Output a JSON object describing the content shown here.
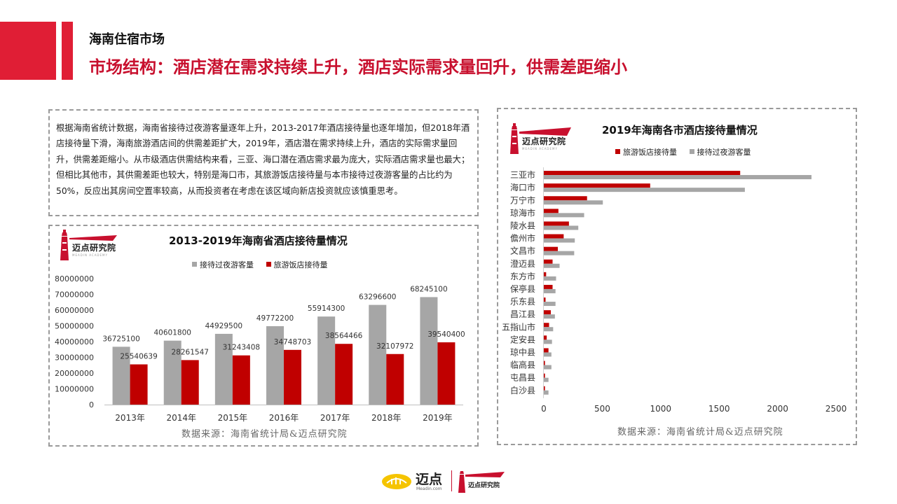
{
  "header": {
    "section": "海南住宿市场",
    "title": "市场结构：酒店潜在需求持续上升，酒店实际需求量回升，供需差距缩小"
  },
  "intro": {
    "text": "根据海南省统计数据，海南省接待过夜游客量逐年上升，2013-2017年酒店接待量也逐年增加，但2018年酒店接待量下滑，海南旅游酒店间的供需差距扩大，2019年，酒店潜在需求持续上升，酒店的实际需求量回升，供需差距缩小。从市级酒店供需结构来看，三亚、海口潜在酒店需求最为庞大，实际酒店需求量也最大；但相比其他市，其供需差距也较大，特别是海口市，其旅游饭店接待量与本市接待过夜游客量的占比约为50%，反应出其房间空置率较高，从而投资者在考虑在该区域向新店投资就应该慎重思考。"
  },
  "logos": {
    "academy_name": "迈点研究院",
    "academy_sub": "MEADIN ACADEMY",
    "footer_brand": "迈点",
    "footer_domain": "Meadin.com",
    "footer_academy": "迈点研究院"
  },
  "colors": {
    "red": "#c00000",
    "gray": "#a6a6a6",
    "accent": "#e01e35"
  },
  "left_chart": {
    "source": "数据来源：海南省统计局&迈点研究院"
  },
  "right_chart": {
    "source": "数据来源：海南省统计局&迈点研究院"
  },
  "chart_data": [
    {
      "type": "bar",
      "title": "2013-2019年海南省酒店接待量情况",
      "categories": [
        "2013年",
        "2014年",
        "2015年",
        "2016年",
        "2017年",
        "2018年",
        "2019年"
      ],
      "series": [
        {
          "name": "接待过夜游客量",
          "color": "#a6a6a6",
          "values": [
            36725100,
            40601800,
            44929500,
            49772200,
            55914300,
            63296600,
            68245100
          ]
        },
        {
          "name": "旅游饭店接待量",
          "color": "#c00000",
          "values": [
            25540639,
            28261547,
            31243408,
            34748703,
            38564466,
            32107972,
            39540400
          ]
        }
      ],
      "legend_order": [
        0,
        1
      ],
      "ylim": [
        0,
        80000000
      ],
      "yticks": [
        "80000000",
        "70000000",
        "60000000",
        "50000000",
        "40000000",
        "30000000",
        "20000000",
        "10000000",
        "0"
      ],
      "ytick_values": [
        80000000,
        70000000,
        60000000,
        50000000,
        40000000,
        30000000,
        20000000,
        10000000,
        0
      ],
      "data_labels": true,
      "legend": "top",
      "grid": false
    },
    {
      "type": "bar",
      "orientation": "horizontal",
      "title": "2019年海南各市酒店接待量情况",
      "categories": [
        "三亚市",
        "海口市",
        "万宁市",
        "琼海市",
        "陵水县",
        "儋州市",
        "文昌市",
        "澄迈县",
        "东方市",
        "保亭县",
        "乐东县",
        "昌江县",
        "五指山市",
        "定安县",
        "琼中县",
        "临高县",
        "屯昌县",
        "白沙县"
      ],
      "series": [
        {
          "name": "旅游饭店接待量",
          "color": "#c00000",
          "values": [
            1680,
            910,
            370,
            125,
            215,
            170,
            120,
            75,
            20,
            75,
            15,
            60,
            45,
            25,
            40,
            10,
            10,
            10
          ]
        },
        {
          "name": "接待过夜游客量",
          "color": "#a6a6a6",
          "values": [
            2290,
            1720,
            505,
            345,
            295,
            265,
            260,
            135,
            105,
            100,
            100,
            95,
            80,
            70,
            65,
            65,
            40,
            40
          ]
        }
      ],
      "xlim": [
        0,
        2500
      ],
      "xticks": [
        "0",
        "500",
        "1000",
        "1500",
        "2000",
        "2500"
      ],
      "xtick_values": [
        0,
        500,
        1000,
        1500,
        2000,
        2500
      ],
      "data_labels": false,
      "legend": "top",
      "grid": false
    }
  ]
}
